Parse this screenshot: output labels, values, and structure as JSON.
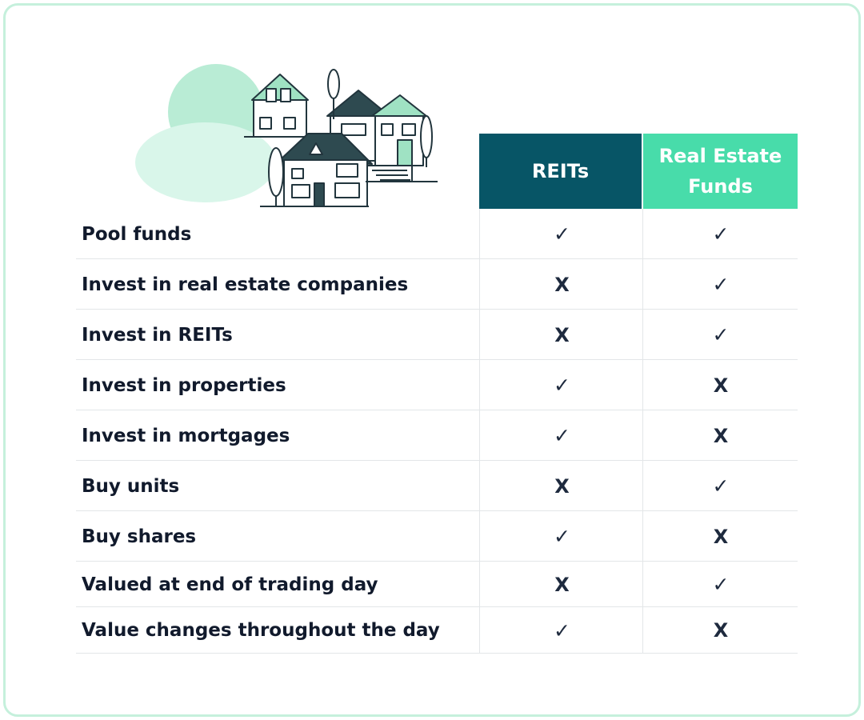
{
  "chart_data": {
    "type": "table",
    "columns": [
      "REITs",
      "Real Estate Funds"
    ],
    "rows": [
      {
        "label": "Pool funds",
        "values": [
          "✓",
          "✓"
        ]
      },
      {
        "label": "Invest in real estate companies",
        "values": [
          "X",
          "✓"
        ]
      },
      {
        "label": "Invest in REITs",
        "values": [
          "X",
          "✓"
        ]
      },
      {
        "label": "Invest in properties",
        "values": [
          "✓",
          "X"
        ]
      },
      {
        "label": "Invest in mortgages",
        "values": [
          "✓",
          "X"
        ]
      },
      {
        "label": "Buy units",
        "values": [
          "X",
          "✓"
        ]
      },
      {
        "label": "Buy shares",
        "values": [
          "✓",
          "X"
        ]
      },
      {
        "label": "Valued at end of trading day",
        "values": [
          "X",
          "✓"
        ]
      },
      {
        "label": "Value changes throughout the day",
        "values": [
          "✓",
          "X"
        ]
      }
    ]
  },
  "colors": {
    "reits_header": "#075566",
    "funds_header": "#48dcaa",
    "border": "#c5f0dc",
    "text": "#111a2c"
  },
  "icons": {
    "illustration": "houses-illustration-icon",
    "yes": "checkmark",
    "no": "x-mark"
  }
}
